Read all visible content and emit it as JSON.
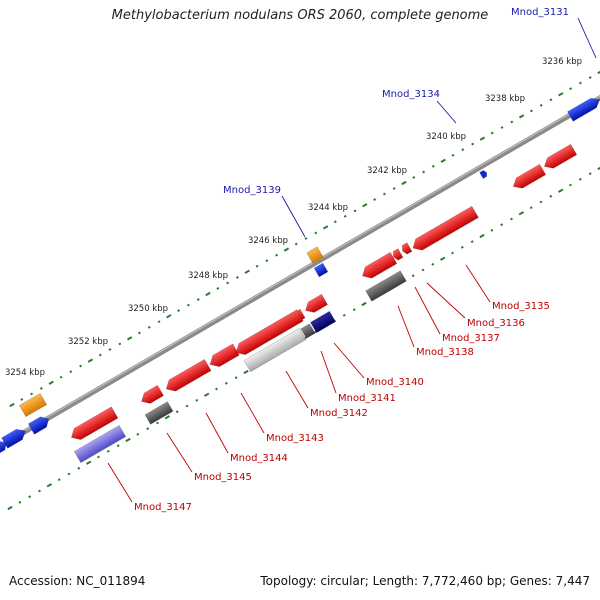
{
  "title": "Methylobacterium nodulans ORS 2060, complete genome",
  "footer": {
    "accession": "Accession: NC_011894",
    "stats": "Topology: circular; Length: 7,772,460 bp; Genes: 7,447"
  },
  "colors": {
    "plus_strand_gene": "#0a2bd6",
    "minus_strand_gene": "#e80e0e",
    "backbone": "#8a8a8a",
    "ticks": "#2b7a2b",
    "label_blue": "#1a1aa8",
    "label_red": "#c00000"
  },
  "ticks": [
    {
      "label": "3236 kbp"
    },
    {
      "label": "3238 kbp"
    },
    {
      "label": "3240 kbp"
    },
    {
      "label": "3242 kbp"
    },
    {
      "label": "3244 kbp"
    },
    {
      "label": "3246 kbp"
    },
    {
      "label": "3248 kbp"
    },
    {
      "label": "3250 kbp"
    },
    {
      "label": "3252 kbp"
    },
    {
      "label": "3254 kbp"
    }
  ],
  "gene_labels": [
    {
      "name": "Mnod_3131",
      "strand": "plus"
    },
    {
      "name": "Mnod_3134",
      "strand": "plus"
    },
    {
      "name": "Mnod_3139",
      "strand": "plus"
    },
    {
      "name": "Mnod_3135",
      "strand": "minus"
    },
    {
      "name": "Mnod_3136",
      "strand": "minus"
    },
    {
      "name": "Mnod_3137",
      "strand": "minus"
    },
    {
      "name": "Mnod_3138",
      "strand": "minus"
    },
    {
      "name": "Mnod_3140",
      "strand": "minus"
    },
    {
      "name": "Mnod_3141",
      "strand": "minus"
    },
    {
      "name": "Mnod_3142",
      "strand": "minus"
    },
    {
      "name": "Mnod_3143",
      "strand": "minus"
    },
    {
      "name": "Mnod_3144",
      "strand": "minus"
    },
    {
      "name": "Mnod_3145",
      "strand": "minus"
    },
    {
      "name": "Mnod_3147",
      "strand": "minus"
    }
  ]
}
